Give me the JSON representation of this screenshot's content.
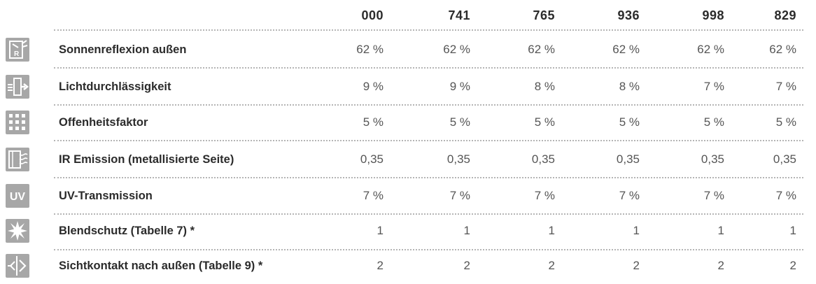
{
  "table": {
    "columns": [
      "000",
      "741",
      "765",
      "936",
      "998",
      "829"
    ],
    "rows": [
      {
        "label": "Sonnenreflexion außen",
        "icon": "reflection-icon",
        "values": [
          "62 %",
          "62 %",
          "62 %",
          "62 %",
          "62 %",
          "62 %"
        ]
      },
      {
        "label": "Lichtdurchlässigkeit",
        "icon": "light-transmission-icon",
        "values": [
          "9 %",
          "9 %",
          "8 %",
          "8 %",
          "7 %",
          "7 %"
        ]
      },
      {
        "label": "Offenheitsfaktor",
        "icon": "openness-dots-icon",
        "values": [
          "5 %",
          "5 %",
          "5 %",
          "5 %",
          "5 %",
          "5 %"
        ]
      },
      {
        "label": "IR Emission (metallisierte Seite)",
        "icon": "ir-emission-icon",
        "values": [
          "0,35",
          "0,35",
          "0,35",
          "0,35",
          "0,35",
          "0,35"
        ]
      },
      {
        "label": "UV-Transmission",
        "icon": "uv-icon",
        "icon_text": "UV",
        "values": [
          "7 %",
          "7 %",
          "7 %",
          "7 %",
          "7 %",
          "7 %"
        ]
      },
      {
        "label": "Blendschutz (Tabelle 7) *",
        "icon": "glare-star-icon",
        "values": [
          "1",
          "1",
          "1",
          "1",
          "1",
          "1"
        ]
      },
      {
        "label": "Sichtkontakt nach außen (Tabelle 9) *",
        "icon": "view-contact-icon",
        "values": [
          "2",
          "2",
          "2",
          "2",
          "2",
          "2"
        ]
      }
    ]
  },
  "colors": {
    "icon_bg": "#a7a7a7",
    "dots": "#b5b5b5",
    "text": "#2b2b2b"
  }
}
